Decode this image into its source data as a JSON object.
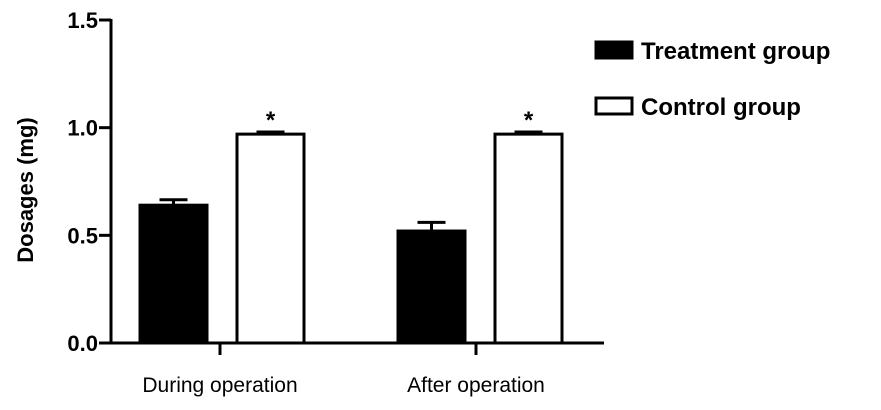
{
  "chart_data": {
    "type": "bar",
    "categories": [
      "During operation",
      "After operation"
    ],
    "series": [
      {
        "name": "Treatment group",
        "values": [
          0.64,
          0.52
        ],
        "error": [
          0.025,
          0.04
        ],
        "fill": "#000000"
      },
      {
        "name": "Control group",
        "values": [
          0.97,
          0.97
        ],
        "error": [
          0.01,
          0.01
        ],
        "fill": "#ffffff"
      }
    ],
    "ylabel": "Dosages (mg)",
    "xlabel": "",
    "ylim": [
      0,
      1.5
    ],
    "yticks": [
      0.0,
      0.5,
      1.0,
      1.5
    ],
    "ytick_labels": [
      "0.0",
      "0.5",
      "1.0",
      "1.5"
    ],
    "significance": [
      {
        "category": 0,
        "series": 1,
        "label": "*"
      },
      {
        "category": 1,
        "series": 1,
        "label": "*"
      }
    ],
    "grid": false,
    "legend": "top-right"
  }
}
